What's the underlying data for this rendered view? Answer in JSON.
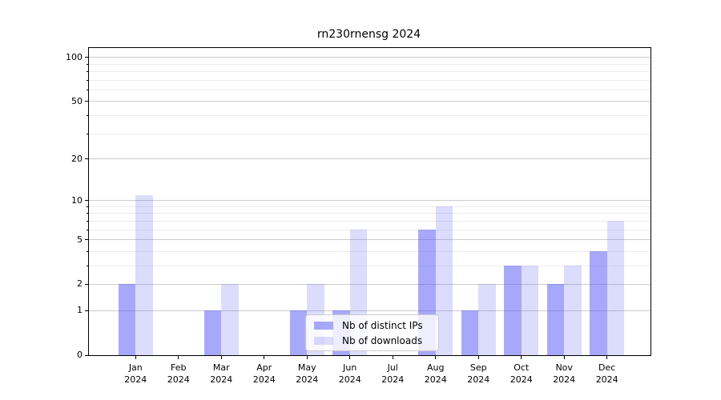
{
  "chart_data": {
    "type": "bar",
    "title": "rn230rnensg 2024",
    "categories": [
      [
        "Jan",
        "2024"
      ],
      [
        "Feb",
        "2024"
      ],
      [
        "Mar",
        "2024"
      ],
      [
        "Apr",
        "2024"
      ],
      [
        "May",
        "2024"
      ],
      [
        "Jun",
        "2024"
      ],
      [
        "Jul",
        "2024"
      ],
      [
        "Aug",
        "2024"
      ],
      [
        "Sep",
        "2024"
      ],
      [
        "Oct",
        "2024"
      ],
      [
        "Nov",
        "2024"
      ],
      [
        "Dec",
        "2024"
      ]
    ],
    "series": [
      {
        "id": "distinct-ips",
        "name": "Nb of distinct IPs",
        "color": "rgba(82,82,245,0.5)",
        "color_hex": "#a8a8f8",
        "values": [
          2,
          0,
          1,
          0,
          1,
          1,
          0,
          6,
          1,
          3,
          2,
          4
        ]
      },
      {
        "id": "downloads",
        "name": "Nb of downloads",
        "color": "rgba(82,82,245,0.2)",
        "color_hex": "#dcdcfa",
        "values": [
          11,
          0,
          2,
          0,
          2,
          6,
          0,
          9,
          2,
          3,
          3,
          7
        ]
      }
    ],
    "xlabel": "",
    "ylabel": "",
    "yscale": "log1p",
    "yticks": [
      0,
      1,
      2,
      5,
      10,
      20,
      50,
      100
    ],
    "yticks_minor": [
      3,
      4,
      6,
      7,
      8,
      9,
      30,
      40,
      60,
      70,
      80,
      90
    ],
    "ylim": [
      0,
      116
    ],
    "grid": true,
    "legend_position": "lower center",
    "colors": {
      "grid_major": "#cdcdcd",
      "grid_minor": "#ededed",
      "spine": "#000000",
      "background": "#ffffff"
    }
  }
}
